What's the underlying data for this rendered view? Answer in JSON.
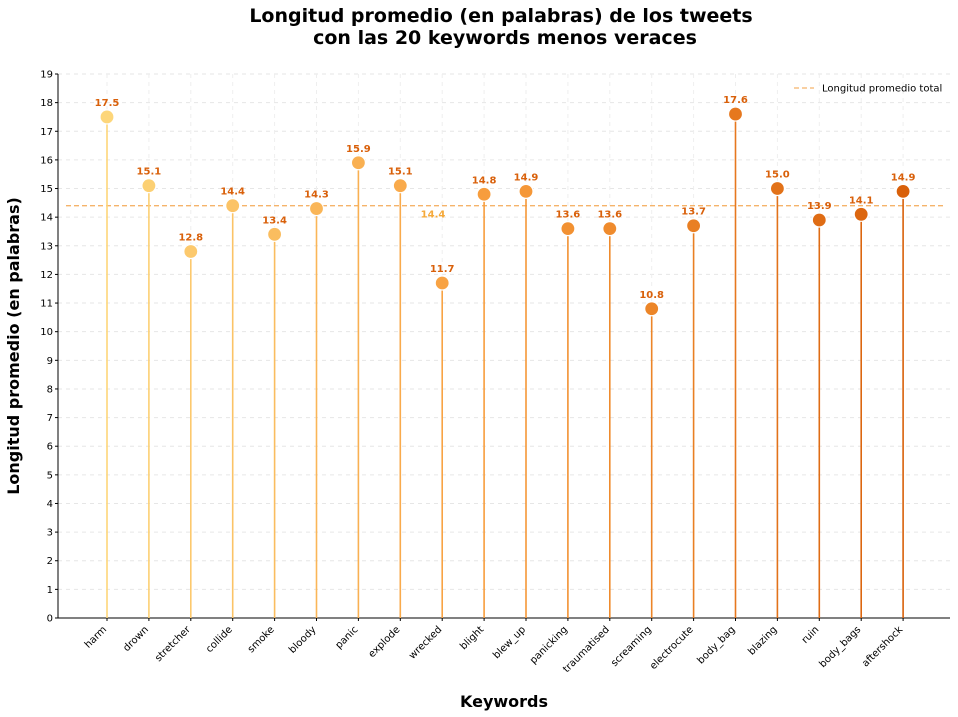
{
  "chart_data": {
    "type": "lollipop",
    "title_lines": [
      "Longitud promedio (en palabras) de los tweets",
      "con las 20 keywords menos veraces"
    ],
    "xlabel": "Keywords",
    "ylabel": "Longitud promedio (en palabras)",
    "ylim": [
      0,
      19
    ],
    "yticks": [
      0,
      1,
      2,
      3,
      4,
      5,
      6,
      7,
      8,
      9,
      10,
      11,
      12,
      13,
      14,
      15,
      16,
      17,
      18,
      19
    ],
    "grid": true,
    "categories": [
      "harm",
      "drown",
      "stretcher",
      "collide",
      "smoke",
      "bloody",
      "panic",
      "explode",
      "wrecked",
      "blight",
      "blew_up",
      "panicking",
      "traumatised",
      "screaming",
      "electrocute",
      "body_bag",
      "blazing",
      "ruin",
      "body_bags",
      "aftershock"
    ],
    "values": [
      17.5,
      15.1,
      12.8,
      14.4,
      13.4,
      14.3,
      15.9,
      15.1,
      11.7,
      14.8,
      14.9,
      13.6,
      13.6,
      10.8,
      13.7,
      17.6,
      15.0,
      13.9,
      14.1,
      14.9
    ],
    "value_labels": [
      "17.5",
      "15.1",
      "12.8",
      "14.4",
      "13.4",
      "14.3",
      "15.9",
      "15.1",
      "11.7",
      "14.8",
      "14.9",
      "13.6",
      "13.6",
      "10.8",
      "13.7",
      "17.6",
      "15.0",
      "13.9",
      "14.1",
      "14.9"
    ],
    "average": {
      "value": 14.4,
      "label": "14.4",
      "legend": "Longitud promedio total",
      "color": "#f5b36a"
    },
    "legend_position": "top-right",
    "colors": {
      "start": "#fdd67a",
      "mid": "#f79a3a",
      "end": "#d9600a",
      "label": "#d9600a",
      "avg_text": "#f5a93a"
    }
  }
}
